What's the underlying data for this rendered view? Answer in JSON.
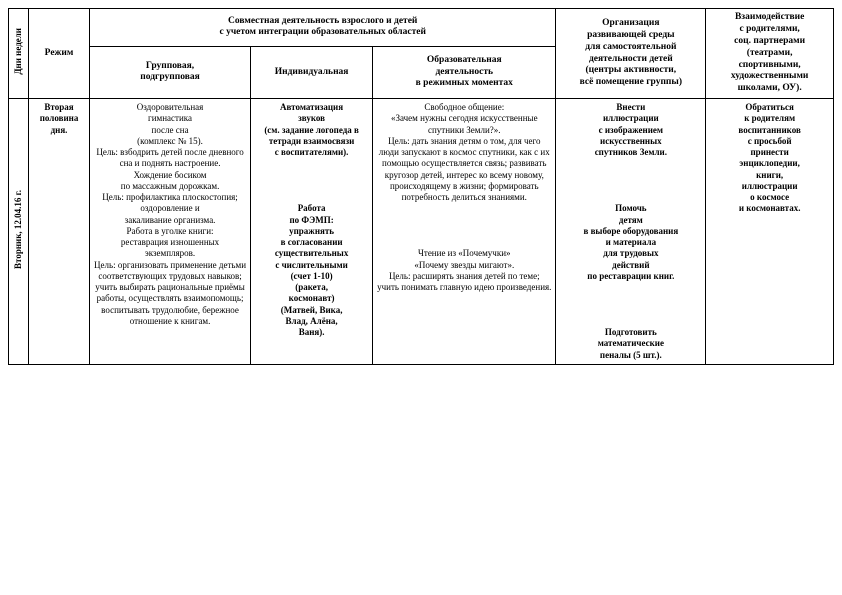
{
  "headers": {
    "dayWeek": "Дни недели",
    "regime": "Режим",
    "jointTop": "Совместная деятельность взрослого и детей\nс учетом интеграции образовательных областей",
    "group": "Групповая,\nподгрупповая",
    "individual": "Индивидуальная",
    "eduMoments": "Образовательная\nдеятельность\nв режимных моментах",
    "org": "Организация\nразвивающей среды\nдля самостоятельной\nдеятельности детей\n(центры активности,\nвсё помещение группы)",
    "interaction": "Взаимодействие\nс родителями,\nсоц. партнерами\n(театрами,\nспортивными,\nхудожественными\nшколами, ОУ)."
  },
  "row": {
    "daySide": "Вторник, 12.04.16 г.",
    "regime": "Вторая\nполовина\nдня.",
    "col1": "Оздоровительная\nгимнастика\nпосле сна\n(комплекс № 15).\nЦель: взбодрить детей после дневного сна и поднять настроение.\n    Хождение босиком\nпо массажным дорожкам.\nЦель: профилактика плоскостопия;\nоздоровление и\nзакаливание организма.\n    Работа в уголке книги:\nреставрация изношенных\nэкземпляров.\nЦель: организовать применение детьми соответствующих трудовых навыков; учить выбирать рациональные приёмы работы, осуществлять взаимопомощь; воспитывать трудолюбие, бережное отношение к книгам.",
    "col2": "Автоматизация\nзвуков\n(см. задание логопеда в тетради взаимосвязи\nс воспитателями).\n\n\nРабота\nпо ФЭМП:\nупражнять\nв согласовании существительных\nс числительными\n(счет 1-10)\n(ракета,\nкосмонавт)\n(Матвей, Вика,\nВлад, Алёна,\nВаня).",
    "col3": "Свободное общение:\n«Зачем нужны сегодня искусственные спутники Земли?».\nЦель: дать знания детям о том, для чего люди запускают в космос спутники, как с их помощью осуществляется связь; развивать кругозор детей, интерес ко всему новому, происходящему в жизни; формировать потребность делиться знаниями.\n\n\nЧтение из «Почемучки»\n«Почему звезды мигают».\nЦель: расширять знания детей по теме; учить понимать главную идею произведения.",
    "col4": "Внести\nиллюстрации\nс изображением\nискусственных\nспутников Земли.\n\n\nПомочь\nдетям\nв выборе оборудования\nи материала\nдля трудовых\nдействий\nпо реставрации книг.\n\n\nПодготовить\nматематические\nпеналы (5 шт.).",
    "col5": "Обратиться\nк родителям\nвоспитанников\nс просьбой\nпринести\nэнциклопедии,\nкниги,\nиллюстрации\nо космосе\nи космонавтах."
  },
  "styles": {
    "background": "#ffffff",
    "border": "#000000",
    "fontBody": 9,
    "fontHeader": 9.5
  }
}
